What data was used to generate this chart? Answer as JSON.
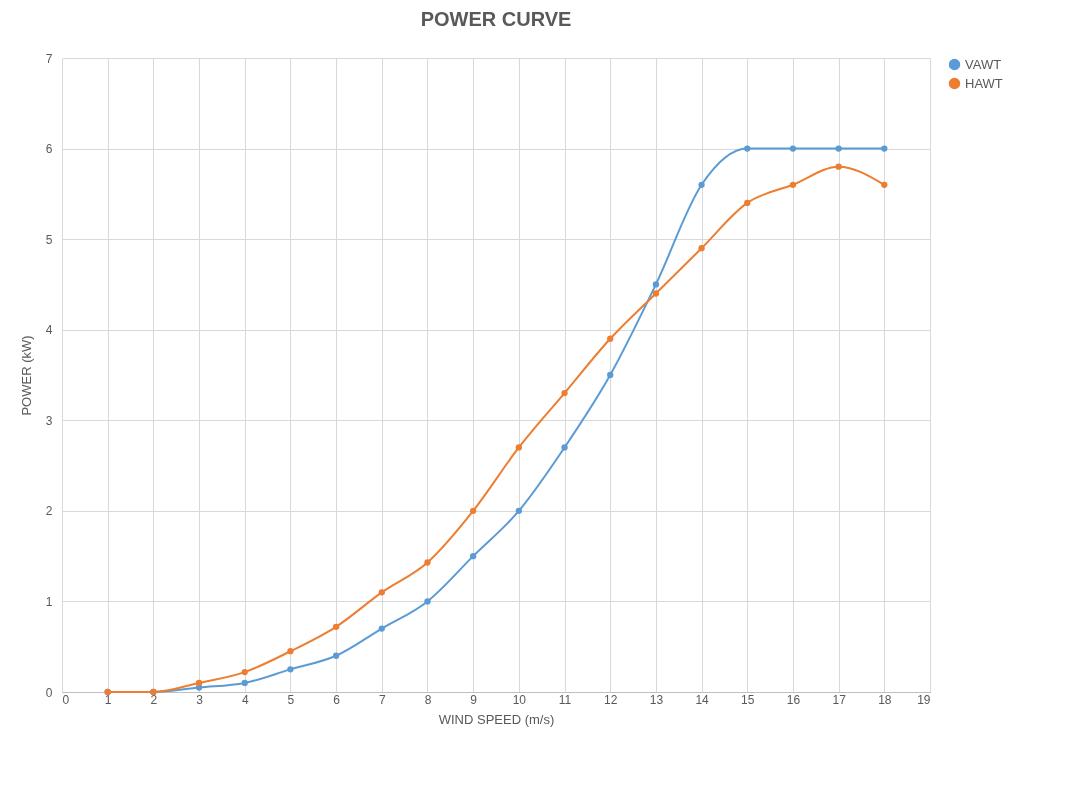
{
  "chart_data": {
    "type": "line",
    "title": "POWER CURVE",
    "xlabel": "WIND  SPEED (m/s)",
    "ylabel": "POWER (kW)",
    "x": [
      1,
      2,
      3,
      4,
      5,
      6,
      7,
      8,
      9,
      10,
      11,
      12,
      13,
      14,
      15,
      16,
      17,
      18
    ],
    "series": [
      {
        "name": "VAWT",
        "color": "#5b9bd5",
        "values": [
          0,
          0,
          0.05,
          0.1,
          0.25,
          0.4,
          0.7,
          1.0,
          1.5,
          2.0,
          2.7,
          3.5,
          4.5,
          5.6,
          6,
          6,
          6,
          6
        ]
      },
      {
        "name": "HAWT",
        "color": "#ed7d31",
        "values": [
          0,
          0,
          0.1,
          0.22,
          0.45,
          0.72,
          1.1,
          1.43,
          2.0,
          2.7,
          3.3,
          3.9,
          4.4,
          4.9,
          5.4,
          5.6,
          5.8,
          5.6
        ]
      }
    ],
    "xlim": [
      0,
      19
    ],
    "xticks": [
      0,
      1,
      2,
      3,
      4,
      5,
      6,
      7,
      8,
      9,
      10,
      11,
      12,
      13,
      14,
      15,
      16,
      17,
      18,
      19
    ],
    "ylim": [
      0,
      7
    ],
    "yticks": [
      0,
      1,
      2,
      3,
      4,
      5,
      6,
      7
    ],
    "grid": true,
    "legend": "right",
    "marker": "circle",
    "line_style": "solid"
  }
}
